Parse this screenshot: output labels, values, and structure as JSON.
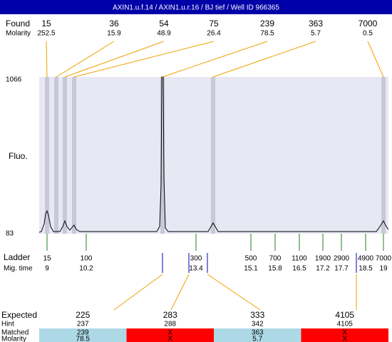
{
  "title": "AXIN1.u.f.14 / AXIN1.u.r.16 / BJ tief / Well ID 966365",
  "found": {
    "label": "Found",
    "molarity_label": "Molarity",
    "peaks": [
      {
        "size": 15,
        "molarity": 252.5
      },
      {
        "size": 36,
        "molarity": 15.9
      },
      {
        "size": 54,
        "molarity": 48.9
      },
      {
        "size": 75,
        "molarity": 26.4
      },
      {
        "size": 239,
        "molarity": 78.5
      },
      {
        "size": 363,
        "molarity": 5.7
      },
      {
        "size": 7000,
        "molarity": 0.5
      }
    ]
  },
  "axis": {
    "label": "Fluo.",
    "top": 1066,
    "bottom": 83
  },
  "ladder": {
    "label": "Ladder",
    "time_label": "Mig. time",
    "peaks": [
      {
        "size": 15,
        "time": 9
      },
      {
        "size": 100,
        "time": 10.2
      },
      {
        "size": 300,
        "time": 13.4
      },
      {
        "size": 500,
        "time": 15.1
      },
      {
        "size": 700,
        "time": 15.8
      },
      {
        "size": 1100,
        "time": 16.5
      },
      {
        "size": 1900,
        "time": 17.2
      },
      {
        "size": 2900,
        "time": 17.7
      },
      {
        "size": 4900,
        "time": 18.5
      },
      {
        "size": 7000,
        "time": 19
      }
    ]
  },
  "expected": {
    "labels": [
      "Expected",
      "Hint",
      "Matched",
      "Molarity"
    ],
    "columns": [
      {
        "expected": 225,
        "hint": 237,
        "matched": 239,
        "molarity": 78.5
      },
      {
        "expected": 283,
        "hint": 288,
        "matched": "X",
        "molarity": "X"
      },
      {
        "expected": 333,
        "hint": 342,
        "matched": 363,
        "molarity": 5.7
      },
      {
        "expected": 4105,
        "hint": 4105,
        "matched": "X",
        "molarity": "X"
      }
    ]
  }
}
